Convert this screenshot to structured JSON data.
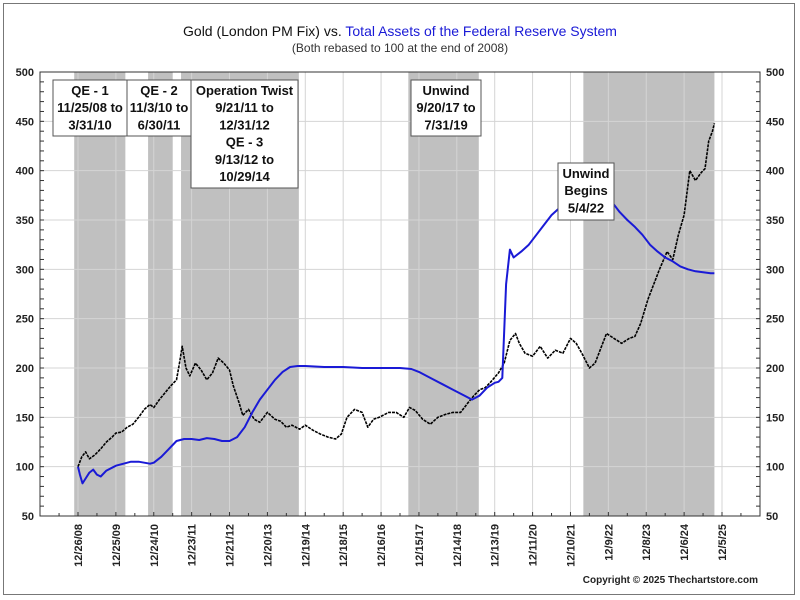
{
  "chart_data": {
    "type": "line",
    "title_part1": "Gold (London PM Fix) vs. ",
    "title_part2": "Total Assets of the Federal Reserve System",
    "subtitle": "(Both rebased to 100 at the end of 2008)",
    "ylim": [
      50,
      500
    ],
    "yticks": [
      50,
      100,
      150,
      200,
      250,
      300,
      350,
      400,
      450,
      500
    ],
    "xlim": [
      2008.0,
      2026.05
    ],
    "xtick_labels": [
      "12/26/08",
      "12/25/09",
      "12/24/10",
      "12/23/11",
      "12/21/12",
      "12/20/13",
      "12/19/14",
      "12/18/15",
      "12/16/16",
      "12/15/17",
      "12/14/18",
      "12/13/19",
      "12/11/20",
      "12/10/21",
      "12/9/22",
      "12/8/23",
      "12/6/24",
      "12/5/25"
    ],
    "xtick_values": [
      2009.0,
      2010.0,
      2011.0,
      2012.0,
      2013.0,
      2014.0,
      2015.0,
      2016.0,
      2017.0,
      2018.0,
      2019.0,
      2020.0,
      2021.0,
      2022.0,
      2023.0,
      2024.0,
      2025.0,
      2026.0
    ],
    "grid": true,
    "colors": {
      "gold": "#000000",
      "fed": "#1a1ad6",
      "shade": "#c0c0c0",
      "title_blue": "#1a1ad6"
    },
    "shaded_periods": [
      {
        "start": 2008.9,
        "end": 2010.25,
        "label": "QE - 1"
      },
      {
        "start": 2010.85,
        "end": 2011.5,
        "label": "QE - 2"
      },
      {
        "start": 2011.72,
        "end": 2014.83,
        "label": "Operation Twist / QE - 3"
      },
      {
        "start": 2017.72,
        "end": 2019.58,
        "label": "Unwind"
      },
      {
        "start": 2022.34,
        "end": 2025.8,
        "label": "Unwind Begins"
      }
    ],
    "annotations": [
      {
        "name": "qe1",
        "lines": [
          "QE - 1",
          "11/25/08 to",
          "3/31/10"
        ]
      },
      {
        "name": "qe2",
        "lines": [
          "QE - 2",
          "11/3/10 to",
          "6/30/11"
        ]
      },
      {
        "name": "optwist",
        "lines": [
          "Operation Twist",
          "9/21/11 to",
          "12/31/12",
          "QE - 3",
          "9/13/12 to",
          "10/29/14"
        ]
      },
      {
        "name": "unwind1",
        "lines": [
          "Unwind",
          "9/20/17 to",
          "7/31/19"
        ]
      },
      {
        "name": "unwind2",
        "lines": [
          "Unwind",
          "Begins",
          "5/4/22"
        ]
      }
    ],
    "series": [
      {
        "name": "Gold (London PM Fix)",
        "x": [
          2009.0,
          2009.1,
          2009.2,
          2009.3,
          2009.45,
          2009.6,
          2009.75,
          2009.9,
          2010.0,
          2010.15,
          2010.3,
          2010.45,
          2010.6,
          2010.75,
          2010.9,
          2011.0,
          2011.15,
          2011.3,
          2011.45,
          2011.6,
          2011.68,
          2011.75,
          2011.85,
          2011.95,
          2012.1,
          2012.25,
          2012.4,
          2012.55,
          2012.7,
          2012.85,
          2013.0,
          2013.1,
          2013.25,
          2013.35,
          2013.5,
          2013.65,
          2013.8,
          2014.0,
          2014.2,
          2014.35,
          2014.5,
          2014.65,
          2014.85,
          2015.0,
          2015.2,
          2015.4,
          2015.6,
          2015.8,
          2015.95,
          2016.1,
          2016.3,
          2016.5,
          2016.65,
          2016.8,
          2016.95,
          2017.2,
          2017.4,
          2017.6,
          2017.75,
          2017.9,
          2018.1,
          2018.3,
          2018.5,
          2018.7,
          2018.9,
          2019.1,
          2019.3,
          2019.45,
          2019.6,
          2019.75,
          2019.9,
          2020.1,
          2020.25,
          2020.4,
          2020.55,
          2020.65,
          2020.8,
          2021.0,
          2021.2,
          2021.4,
          2021.6,
          2021.8,
          2022.0,
          2022.15,
          2022.3,
          2022.5,
          2022.65,
          2022.8,
          2022.95,
          2023.15,
          2023.35,
          2023.55,
          2023.7,
          2023.85,
          2024.05,
          2024.2,
          2024.35,
          2024.55,
          2024.7,
          2024.85,
          2025.0,
          2025.15,
          2025.3,
          2025.45,
          2025.55,
          2025.65,
          2025.75,
          2025.8
        ],
        "values": [
          100,
          110,
          115,
          108,
          112,
          118,
          125,
          130,
          134,
          135,
          140,
          143,
          150,
          158,
          163,
          160,
          168,
          175,
          182,
          188,
          205,
          222,
          200,
          192,
          205,
          198,
          188,
          195,
          210,
          205,
          198,
          182,
          165,
          152,
          158,
          148,
          145,
          155,
          148,
          146,
          140,
          142,
          138,
          142,
          137,
          133,
          130,
          128,
          133,
          150,
          158,
          155,
          140,
          148,
          150,
          155,
          155,
          150,
          160,
          157,
          148,
          143,
          150,
          153,
          155,
          155,
          165,
          172,
          178,
          180,
          186,
          195,
          205,
          228,
          235,
          225,
          215,
          212,
          222,
          210,
          218,
          215,
          230,
          225,
          215,
          200,
          205,
          220,
          235,
          230,
          225,
          230,
          232,
          245,
          270,
          285,
          300,
          318,
          310,
          335,
          355,
          400,
          390,
          398,
          402,
          430,
          440,
          448
        ]
      },
      {
        "name": "Total Assets of the Federal Reserve System",
        "x": [
          2009.0,
          2009.05,
          2009.12,
          2009.2,
          2009.3,
          2009.4,
          2009.5,
          2009.6,
          2009.75,
          2009.9,
          2010.0,
          2010.2,
          2010.4,
          2010.6,
          2010.75,
          2010.9,
          2011.0,
          2011.2,
          2011.4,
          2011.6,
          2011.8,
          2012.0,
          2012.2,
          2012.4,
          2012.6,
          2012.8,
          2013.0,
          2013.2,
          2013.4,
          2013.6,
          2013.8,
          2014.0,
          2014.2,
          2014.4,
          2014.6,
          2014.8,
          2015.0,
          2015.5,
          2016.0,
          2016.5,
          2017.0,
          2017.5,
          2017.8,
          2018.0,
          2018.3,
          2018.6,
          2018.9,
          2019.2,
          2019.4,
          2019.6,
          2019.8,
          2020.0,
          2020.1,
          2020.2,
          2020.3,
          2020.4,
          2020.5,
          2020.7,
          2020.9,
          2021.1,
          2021.3,
          2021.5,
          2021.7,
          2021.9,
          2022.1,
          2022.2,
          2022.3,
          2022.4,
          2022.5,
          2022.7,
          2022.9,
          2023.1,
          2023.3,
          2023.5,
          2023.7,
          2023.9,
          2024.1,
          2024.3,
          2024.5,
          2024.7,
          2024.9,
          2025.1,
          2025.3,
          2025.5,
          2025.7,
          2025.8
        ],
        "values": [
          100,
          92,
          83,
          88,
          94,
          97,
          92,
          90,
          96,
          99,
          101,
          103,
          105,
          105,
          104,
          103,
          104,
          110,
          118,
          126,
          128,
          128,
          127,
          129,
          128,
          126,
          126,
          130,
          140,
          155,
          168,
          178,
          188,
          196,
          201,
          202,
          202,
          201,
          201,
          200,
          200,
          200,
          199,
          196,
          190,
          184,
          178,
          172,
          168,
          172,
          180,
          185,
          186,
          190,
          285,
          320,
          312,
          318,
          325,
          335,
          345,
          355,
          362,
          368,
          372,
          374,
          377,
          375,
          388,
          385,
          375,
          368,
          358,
          350,
          343,
          335,
          325,
          318,
          312,
          308,
          303,
          300,
          298,
          297,
          296,
          296
        ]
      }
    ]
  },
  "footer": {
    "copyright": "Copyright © 2025 Thechartstore.com"
  }
}
